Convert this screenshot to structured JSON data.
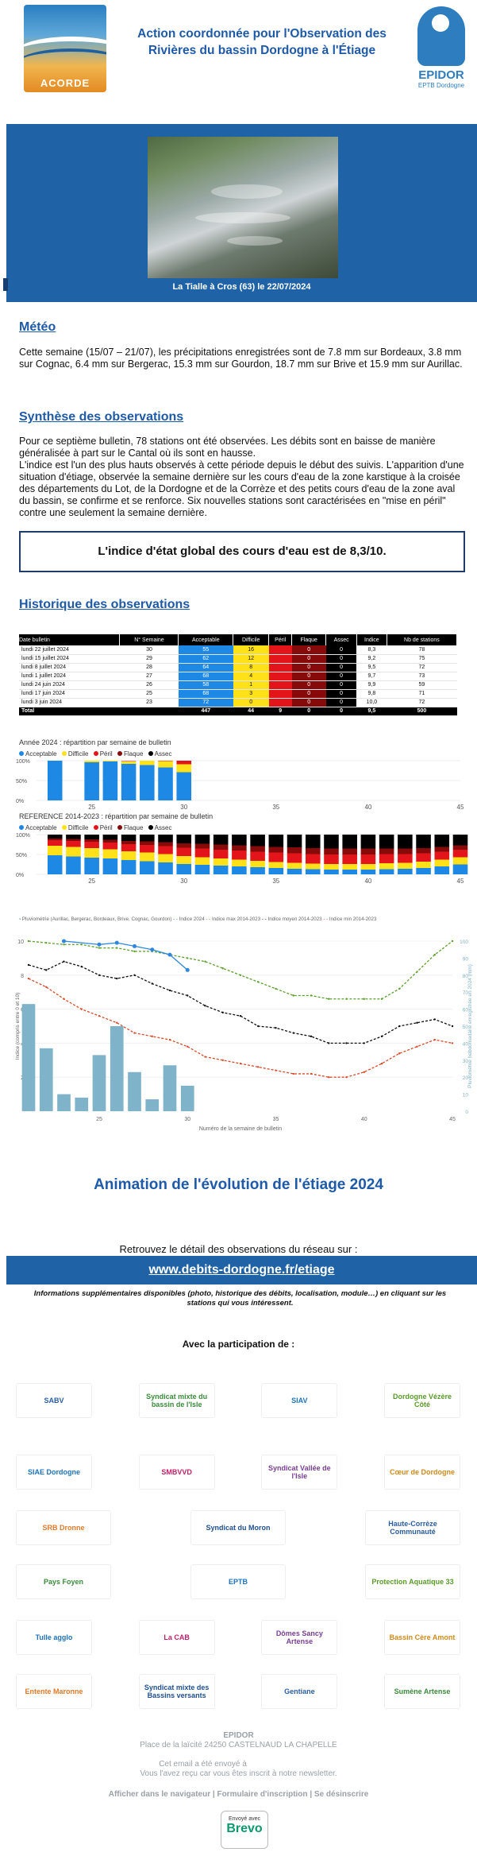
{
  "header": {
    "title_line1": "Action coordonnée pour l'Observation des",
    "title_line2": "Rivières du bassin Dordogne à l'Étiage",
    "acorde_label": "ACORDE",
    "epidor_name": "EPIDOR",
    "epidor_sub": "EPTB Dordogne"
  },
  "photo": {
    "caption": "La Tialle à Cros (63) le 22/07/2024"
  },
  "meteo": {
    "heading": "Météo",
    "text": "Cette semaine (15/07 – 21/07), les précipitations enregistrées sont de 7.8 mm sur Bordeaux, 3.8 mm sur Cognac, 6.4 mm sur Bergerac, 15.3 mm sur Gourdon, 18.7 mm sur Brive et 15.9 mm sur Aurillac."
  },
  "synthese": {
    "heading": "Synthèse des observations",
    "text1": "Pour ce septième bulletin, 78 stations ont été observées. Les débits sont en baisse de manière généralisée à part sur le Cantal où ils sont en hausse.",
    "text2": "L'indice est l'un des plus hauts observés à cette période depuis le début des suivis. L'apparition d'une situation d'étiage, observée la semaine dernière sur les cours d'eau de la zone karstique à la croisée des départements du Lot, de la Dordogne et de la Corrèze et des petits cours d'eau de la zone aval du bassin, se confirme et se renforce. Six nouvelles stations sont caractérisées en \"mise en péril\" contre une seulement la semaine dernière.",
    "indice_box": "L'indice d'état global des cours d'eau est de 8,3/10."
  },
  "historique": {
    "heading": "Historique des observations",
    "columns": [
      "Date bulletin",
      "N° Semaine",
      "Acceptable",
      "Difficile",
      "Péril",
      "Flaque",
      "Assec",
      "Indice",
      "Nb de stations"
    ],
    "rows": [
      [
        "lundi 22 juillet 2024",
        "30",
        "55",
        "16",
        "7",
        "0",
        "0",
        "8,3",
        "78"
      ],
      [
        "lundi 15 juillet 2024",
        "29",
        "62",
        "12",
        "1",
        "0",
        "0",
        "9,2",
        "75"
      ],
      [
        "lundi 8 juillet 2024",
        "28",
        "64",
        "8",
        "0",
        "0",
        "0",
        "9,5",
        "72"
      ],
      [
        "lundi 1 juillet 2024",
        "27",
        "68",
        "4",
        "1",
        "0",
        "0",
        "9,7",
        "73"
      ],
      [
        "lundi 24 juin 2024",
        "26",
        "58",
        "1",
        "0",
        "0",
        "0",
        "9,9",
        "59"
      ],
      [
        "lundi 17 juin 2024",
        "25",
        "68",
        "3",
        "0",
        "0",
        "0",
        "9,8",
        "71"
      ],
      [
        "lundi 3 juin 2024",
        "23",
        "72",
        "0",
        "0",
        "0",
        "0",
        "10,0",
        "72"
      ]
    ],
    "total": [
      "Total",
      "",
      "447",
      "44",
      "9",
      "0",
      "0",
      "9,5",
      "500"
    ],
    "sort_icon": "sort-down-icon"
  },
  "legend": {
    "acceptable": "Acceptable",
    "difficile": "Difficile",
    "peril": "Péril",
    "flaque": "Flaque",
    "assec": "Assec"
  },
  "colors": {
    "acceptable": "#1e88e5",
    "difficile": "#ffe11a",
    "peril": "#e3151a",
    "flaque": "#870a0a",
    "assec": "#000000",
    "accent": "#1f63a6"
  },
  "chart_data": [
    {
      "type": "bar",
      "title": "Année 2024 : répartition par semaine de bulletin",
      "x": [
        23,
        25,
        26,
        27,
        28,
        29,
        30
      ],
      "series": [
        {
          "name": "Acceptable",
          "values": [
            100,
            96,
            98,
            92,
            89,
            83,
            71
          ]
        },
        {
          "name": "Difficile",
          "values": [
            0,
            4,
            2,
            6,
            11,
            16,
            20
          ]
        },
        {
          "name": "Péril",
          "values": [
            0,
            0,
            0,
            1,
            0,
            1,
            9
          ]
        }
      ],
      "xticks": [
        "25",
        "30",
        "35",
        "40",
        "45"
      ],
      "yticks": [
        "100%",
        "50%",
        "0%"
      ],
      "xlim": [
        22,
        45
      ]
    },
    {
      "type": "bar",
      "title": "REFERENCE 2014-2023 : répartition par semaine de bulletin",
      "x": [
        23,
        24,
        25,
        26,
        27,
        28,
        29,
        30,
        31,
        32,
        33,
        34,
        35,
        36,
        37,
        38,
        39,
        40,
        41,
        42,
        43,
        44,
        45
      ],
      "series": [
        {
          "name": "Acceptable",
          "values": [
            48,
            45,
            42,
            40,
            36,
            33,
            30,
            26,
            24,
            22,
            20,
            18,
            16,
            14,
            13,
            12,
            12,
            12,
            13,
            14,
            16,
            20,
            25
          ]
        },
        {
          "name": "Difficile",
          "values": [
            24,
            24,
            24,
            23,
            22,
            22,
            21,
            20,
            19,
            18,
            17,
            16,
            15,
            15,
            14,
            14,
            14,
            14,
            15,
            15,
            16,
            17,
            18
          ]
        },
        {
          "name": "Péril",
          "values": [
            14,
            15,
            16,
            17,
            18,
            19,
            20,
            21,
            22,
            22,
            23,
            23,
            24,
            24,
            24,
            24,
            24,
            24,
            23,
            22,
            21,
            20,
            19
          ]
        },
        {
          "name": "Flaque",
          "values": [
            4,
            5,
            6,
            7,
            8,
            9,
            10,
            11,
            12,
            13,
            13,
            14,
            14,
            15,
            15,
            15,
            15,
            15,
            14,
            14,
            13,
            12,
            11
          ]
        },
        {
          "name": "Assec",
          "values": [
            10,
            11,
            12,
            13,
            16,
            17,
            19,
            22,
            23,
            25,
            27,
            29,
            31,
            32,
            34,
            35,
            35,
            35,
            35,
            35,
            34,
            31,
            27
          ]
        }
      ],
      "xticks": [
        "25",
        "30",
        "35",
        "40",
        "45"
      ],
      "yticks": [
        "100%",
        "50%",
        "0%"
      ],
      "xlim": [
        22,
        45
      ]
    },
    {
      "type": "line",
      "legend": [
        "Pluviométrie (Aurillac, Bergerac, Bordeaux, Brive, Cognac, Gourdon)",
        "Indice 2024",
        "Indice max 2014-2023",
        "Indice moyen 2014-2023",
        "Indice min 2014-2023"
      ],
      "ylabel": "Indice (compris entre 0 et 10)",
      "y2label": "Pluviométrie hebdomadaire enregistrée en 2024 (mm)",
      "xlabel": "Numéro de la semaine de bulletin",
      "xlim": [
        21,
        45
      ],
      "ylim": [
        0,
        10
      ],
      "y2lim": [
        0,
        100
      ],
      "xticks": [
        "25",
        "30",
        "35",
        "40",
        "45"
      ],
      "yticks": [
        "10",
        "8",
        "6",
        "4",
        "2"
      ],
      "y2ticks": [
        "100",
        "90",
        "80",
        "70",
        "60",
        "50",
        "40",
        "30",
        "20",
        "10",
        "0"
      ],
      "rain_x": [
        21,
        22,
        23,
        24,
        25,
        26,
        27,
        28,
        29,
        30
      ],
      "rain": [
        63,
        37,
        10,
        8,
        33,
        50,
        23,
        7,
        27,
        15
      ],
      "indice_2024_x": [
        23,
        25,
        26,
        27,
        28,
        29,
        30
      ],
      "indice_2024": [
        10.0,
        9.8,
        9.9,
        9.7,
        9.5,
        9.2,
        8.3
      ],
      "max_x": [
        21,
        22,
        23,
        24,
        25,
        26,
        27,
        28,
        29,
        30,
        31,
        32,
        33,
        34,
        35,
        36,
        37,
        38,
        39,
        40,
        41,
        42,
        43,
        44,
        45
      ],
      "max": [
        10,
        9.9,
        9.8,
        9.8,
        9.6,
        9.6,
        9.4,
        9.4,
        9.2,
        9.0,
        8.8,
        8.4,
        8.0,
        7.6,
        7.2,
        6.8,
        6.8,
        6.6,
        6.6,
        6.6,
        6.6,
        7.2,
        8.2,
        9.2,
        10.0
      ],
      "mean": [
        8.6,
        8.3,
        8.8,
        8.5,
        8.0,
        7.8,
        8.0,
        7.5,
        7.1,
        6.8,
        6.2,
        5.8,
        5.6,
        5.0,
        4.9,
        4.6,
        4.4,
        4.0,
        4.0,
        4.0,
        4.4,
        5.0,
        5.2,
        5.4,
        5.0
      ],
      "min": [
        7.8,
        7.3,
        6.6,
        6.0,
        5.6,
        5.2,
        4.6,
        4.4,
        4.2,
        3.8,
        3.2,
        3.0,
        2.8,
        2.6,
        2.4,
        2.2,
        2.2,
        2.0,
        2.0,
        2.3,
        2.8,
        3.4,
        3.8,
        4.2,
        4.0
      ]
    }
  ],
  "animation_title": "Animation de l'évolution de l'étiage 2024",
  "retrouvez": "Retrouvez le détail des observations du réseau sur :",
  "link": "www.debits-dordogne.fr/etiage",
  "info_text": "Informations supplémentaires disponibles (photo, historique des débits, localisation, module…) en cliquant sur les stations qui vous intéressent.",
  "participation": "Avec la participation de :",
  "partners": [
    "SABV",
    "Syndicat mixte du bassin de l'Isle",
    "SIAV",
    "Dordogne Vézère Côté",
    "SIAE Dordogne",
    "SMBVVD",
    "Syndicat Vallée de l'Isle",
    "Cœur de Dordogne",
    "SRB Dronne",
    "Syndicat du Moron",
    "Haute-Corrèze Communauté",
    "Pays Foyen",
    "EPTB",
    "Protection Aquatique 33",
    "Tulle agglo",
    "La CAB",
    "Dômes Sancy Artense",
    "Bassin Cère Amont",
    "Entente Maronne",
    "Syndicat mixte des Bassins versants",
    "Gentiane",
    "Sumène Artense"
  ],
  "footer": {
    "org": "EPIDOR",
    "address": "Place de la laïcité 24250 CASTELNAUD LA CHAPELLE",
    "sent_to": "Cet email a été envoyé à",
    "reason": "Vous l'avez reçu car vous êtes inscrit à notre newsletter.",
    "browser": "Afficher dans le navigateur",
    "form": "Formulaire d'inscription",
    "unsub": "Se désinscrire",
    "sep": "|",
    "brevo_sent": "Envoyé avec",
    "brevo": "Brevo"
  }
}
